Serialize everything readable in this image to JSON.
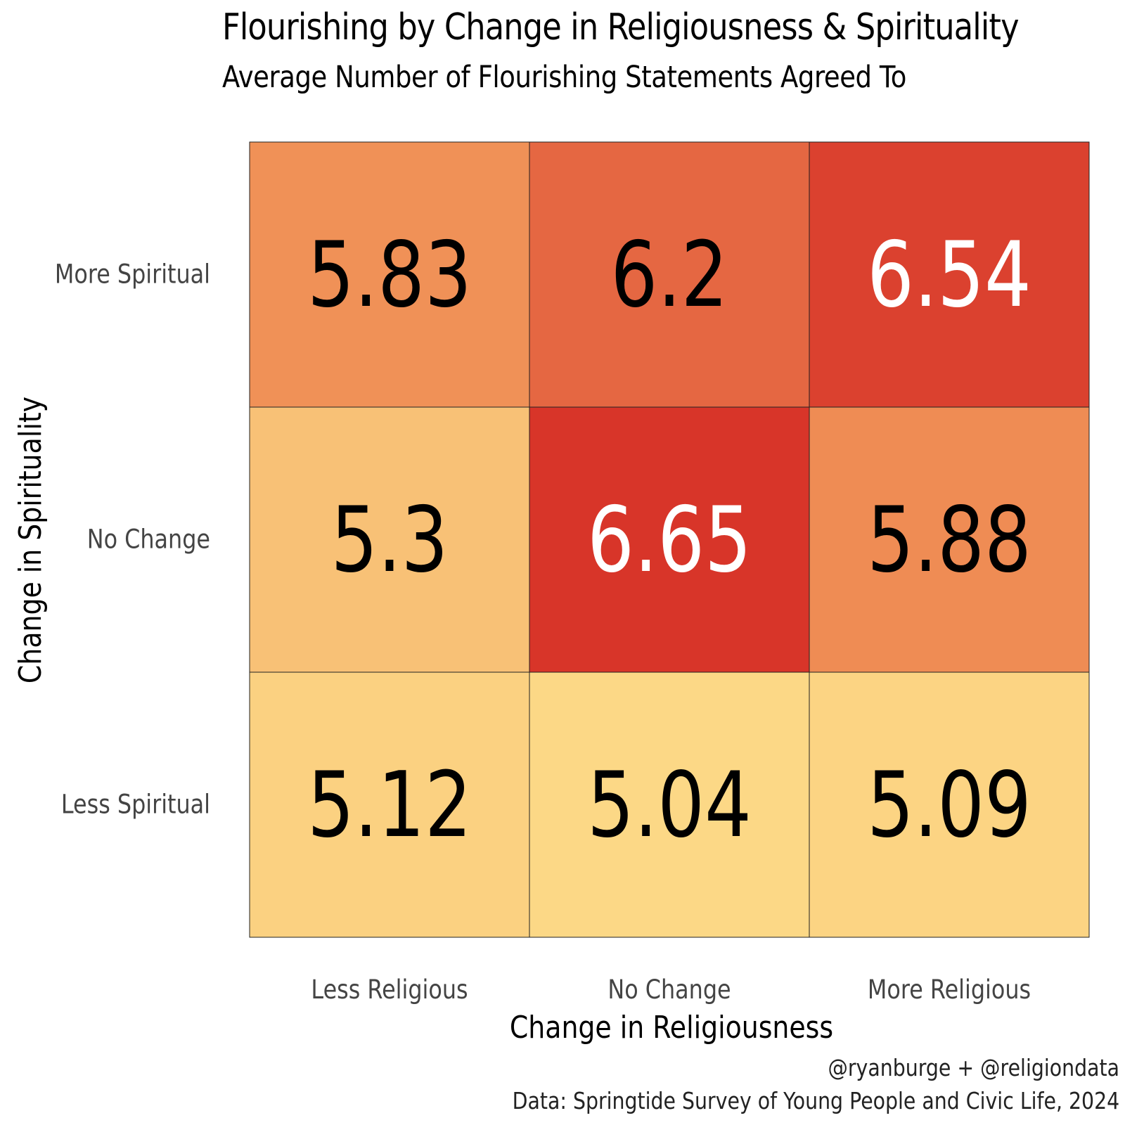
{
  "chart_data": {
    "type": "heatmap",
    "title": "Flourishing by Change in Religiousness & Spirituality",
    "subtitle": "Average Number of Flourishing Statements Agreed To",
    "xlabel": "Change in Religiousness",
    "ylabel": "Change in Spirituality",
    "x_categories": [
      "Less Religious",
      "No Change",
      "More Religious"
    ],
    "y_categories": [
      "More Spiritual",
      "No Change",
      "Less Spiritual"
    ],
    "values": [
      [
        5.83,
        6.2,
        6.54
      ],
      [
        5.3,
        6.65,
        5.88
      ],
      [
        5.12,
        5.04,
        5.09
      ]
    ],
    "value_labels": [
      [
        "5.83",
        "6.2",
        "6.54"
      ],
      [
        "5.3",
        "6.65",
        "5.88"
      ],
      [
        "5.12",
        "5.04",
        "5.09"
      ]
    ],
    "color_scale": {
      "low": "#fddc88",
      "mid": "#f08f56",
      "high": "#d62f26",
      "domain": [
        5.0,
        6.7
      ]
    },
    "label_colors": {
      "dark": "#000000",
      "light": "#ffffff"
    }
  },
  "caption": {
    "credit": "@ryanburge + @religiondata",
    "source": "Data: Springtide Survey of Young People and Civic Life, 2024"
  }
}
